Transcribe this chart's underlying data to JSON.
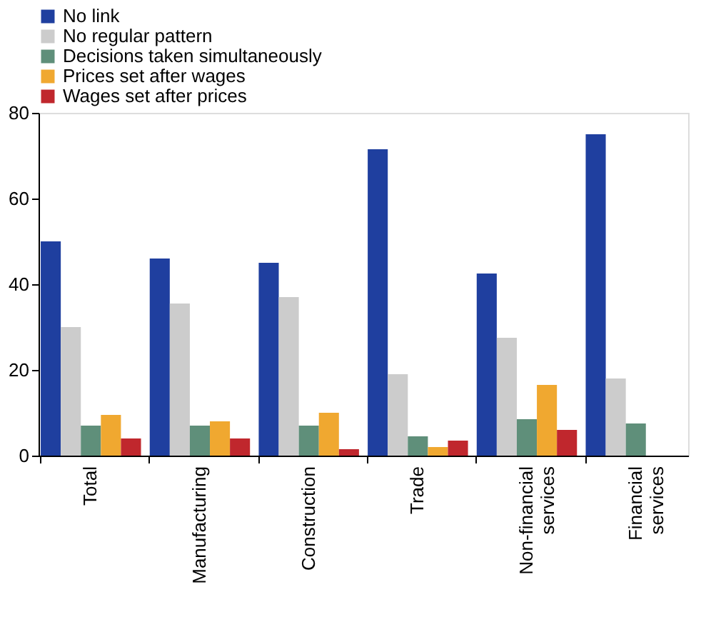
{
  "chart_data": {
    "type": "bar",
    "categories": [
      "Total",
      "Manufacturing",
      "Construction",
      "Trade",
      "Non-financial services",
      "Financial services"
    ],
    "series": [
      {
        "name": "No link",
        "color": "#1f3f9f",
        "values": [
          50,
          46,
          45,
          71.5,
          42.5,
          75
        ]
      },
      {
        "name": "No regular pattern",
        "color": "#cccccc",
        "values": [
          30,
          35.5,
          37,
          19,
          27.5,
          18
        ]
      },
      {
        "name": "Decisions taken simultaneously",
        "color": "#5f8f7a",
        "values": [
          7,
          7,
          7,
          4.5,
          8.5,
          7.5
        ]
      },
      {
        "name": "Prices set after wages",
        "color": "#f0a830",
        "values": [
          9.5,
          8,
          10,
          2,
          16.5,
          null
        ]
      },
      {
        "name": "Wages set after prices",
        "color": "#c0272d",
        "values": [
          4,
          4,
          1.5,
          3.5,
          6,
          null
        ]
      }
    ],
    "ylim": [
      0,
      80
    ],
    "yticks": [
      0,
      20,
      40,
      60,
      80
    ],
    "grid": false,
    "legend": "top left"
  }
}
